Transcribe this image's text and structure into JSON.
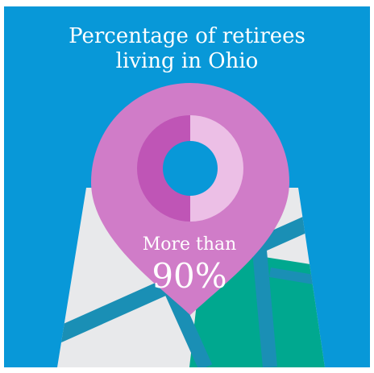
{
  "title": {
    "line1": "Percentage of retirees",
    "line2": "living in Ohio"
  },
  "stat": {
    "caption": "More than",
    "value": "90%",
    "fraction_shown": 0.5
  },
  "colors": {
    "background": "#0898d8",
    "pin": "#d07cc8",
    "donut_dark": "#bf55b6",
    "donut_light": "#ecbfe6",
    "map_base": "#e8e9eb",
    "road": "#1a8fb5",
    "park": "#00a88f"
  },
  "icons": {
    "map": "folded-map-icon",
    "pin": "location-pin-icon",
    "donut": "donut-chart-icon"
  }
}
